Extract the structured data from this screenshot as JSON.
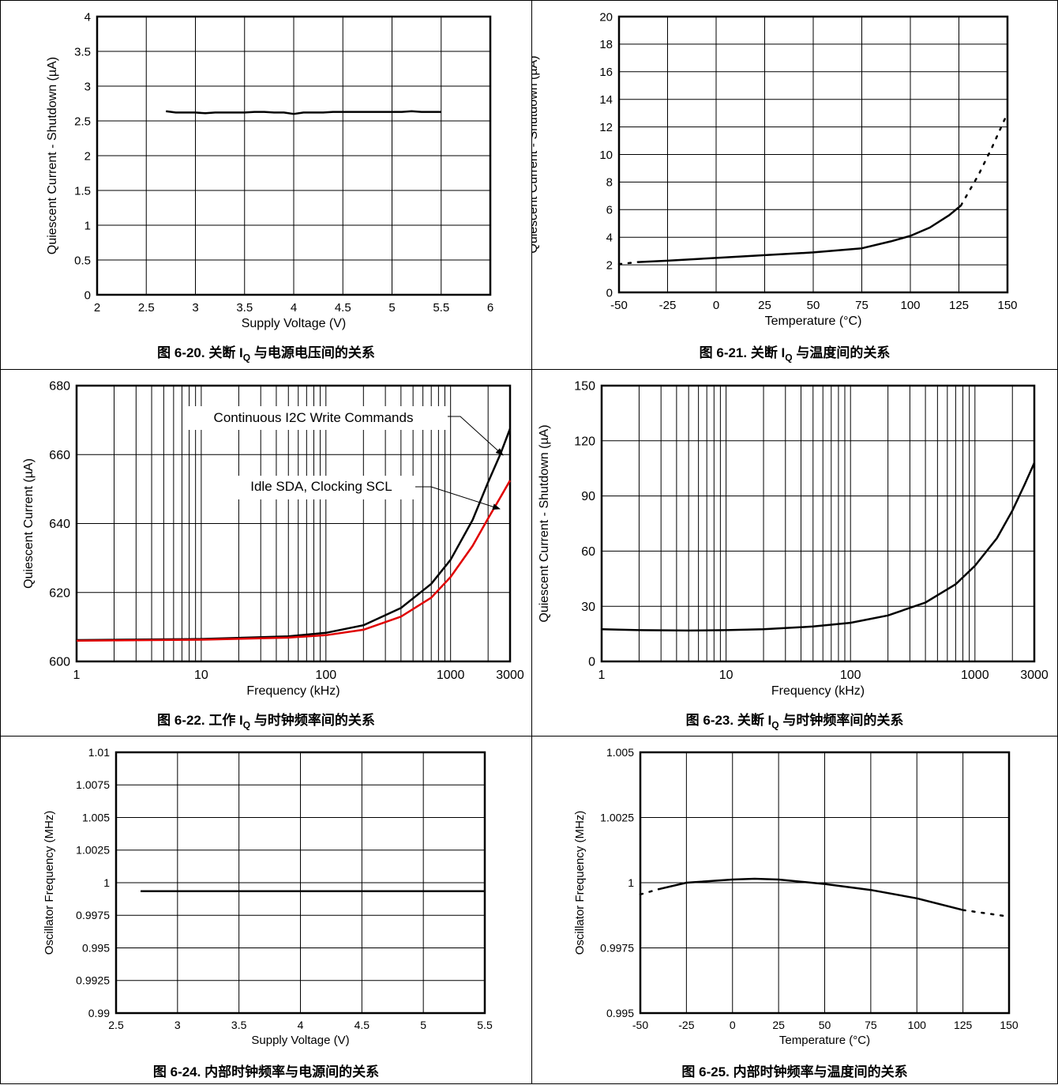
{
  "charts": [
    {
      "caption_prefix": "图 6-20. 关断 I",
      "caption_sub": "Q",
      "caption_suffix": " 与电源电压间的关系",
      "chart_data": {
        "type": "line",
        "xlabel": "Supply Voltage (V)",
        "ylabel": "Quiescent Current - Shutdown (µA)",
        "xlim": [
          2,
          6
        ],
        "ylim": [
          0,
          4
        ],
        "xticks": [
          "2",
          "2.5",
          "3",
          "3.5",
          "4",
          "4.5",
          "5",
          "5.5",
          "6"
        ],
        "yticks": [
          "0",
          "0.5",
          "1",
          "1.5",
          "2",
          "2.5",
          "3",
          "3.5",
          "4"
        ],
        "grid": true,
        "series": [
          {
            "color": "#000000",
            "x": [
              2.7,
              2.8,
              2.9,
              3.0,
              3.1,
              3.2,
              3.3,
              3.4,
              3.5,
              3.6,
              3.7,
              3.8,
              3.9,
              4.0,
              4.1,
              4.2,
              4.3,
              4.4,
              4.5,
              4.6,
              4.7,
              4.8,
              4.9,
              5.0,
              5.1,
              5.2,
              5.3,
              5.4,
              5.5
            ],
            "y": [
              2.64,
              2.62,
              2.62,
              2.62,
              2.61,
              2.62,
              2.62,
              2.62,
              2.62,
              2.63,
              2.63,
              2.62,
              2.62,
              2.6,
              2.62,
              2.62,
              2.62,
              2.63,
              2.63,
              2.63,
              2.63,
              2.63,
              2.63,
              2.63,
              2.63,
              2.64,
              2.63,
              2.63,
              2.63
            ]
          }
        ]
      }
    },
    {
      "caption_prefix": "图 6-21. 关断 I",
      "caption_sub": "Q",
      "caption_suffix": " 与温度间的关系",
      "chart_data": {
        "type": "line",
        "xlabel": "Temperature (°C)",
        "ylabel": "Quiescent Current - Shutdown (µA)",
        "xlim": [
          -50,
          150
        ],
        "ylim": [
          0,
          20
        ],
        "xticks": [
          "-50",
          "-25",
          "0",
          "25",
          "50",
          "75",
          "100",
          "125",
          "150"
        ],
        "yticks": [
          "0",
          "2",
          "4",
          "6",
          "8",
          "10",
          "12",
          "14",
          "16",
          "18",
          "20"
        ],
        "grid": true,
        "series": [
          {
            "color": "#000000",
            "x": [
              -40,
              -25,
              0,
              25,
              50,
              75,
              90,
              100,
              110,
              120,
              126
            ],
            "y": [
              2.2,
              2.3,
              2.5,
              2.7,
              2.9,
              3.2,
              3.7,
              4.1,
              4.7,
              5.6,
              6.3
            ]
          },
          {
            "color": "#000000",
            "dashed": true,
            "x": [
              -50,
              -40
            ],
            "y": [
              2.05,
              2.2
            ]
          },
          {
            "color": "#000000",
            "dashed": true,
            "x": [
              126,
              135,
              142,
              150
            ],
            "y": [
              6.3,
              8.5,
              10.5,
              13.0
            ]
          }
        ]
      }
    },
    {
      "caption_prefix": "图 6-22. 工作 I",
      "caption_sub": "Q",
      "caption_suffix": " 与时钟频率间的关系",
      "chart_data": {
        "type": "line",
        "xscale": "log",
        "xlabel": "Frequency (kHz)",
        "ylabel": "Quiescent Current (µA)",
        "xlim": [
          1,
          3000
        ],
        "ylim": [
          600,
          680
        ],
        "xticks": [
          "1",
          "10",
          "100",
          "1000",
          "3000"
        ],
        "yticks": [
          "600",
          "620",
          "640",
          "660",
          "680"
        ],
        "grid": true,
        "annotations": [
          "Continuous I2C Write Commands",
          "Idle SDA, Clocking SCL"
        ],
        "series": [
          {
            "name": "Continuous I2C Write Commands",
            "color": "#000000",
            "x": [
              1,
              10,
              50,
              100,
              200,
              400,
              700,
              1000,
              1500,
              2000,
              2500,
              3000
            ],
            "y": [
              606.2,
              606.5,
              607.3,
              608.3,
              610.5,
              615.5,
              622.5,
              629.5,
              641,
              652,
              660,
              667.5
            ]
          },
          {
            "name": "Idle SDA, Clocking SCL",
            "color": "#e00000",
            "x": [
              1,
              10,
              50,
              100,
              200,
              400,
              700,
              1000,
              1500,
              2000,
              2500,
              3000
            ],
            "y": [
              606.0,
              606.3,
              606.9,
              607.6,
              609.2,
              613.0,
              618.5,
              624.5,
              633.5,
              641.5,
              647.5,
              652.5
            ]
          }
        ]
      }
    },
    {
      "caption_prefix": "图 6-23. 关断 I",
      "caption_sub": "Q",
      "caption_suffix": " 与时钟频率间的关系",
      "chart_data": {
        "type": "line",
        "xscale": "log",
        "xlabel": "Frequency (kHz)",
        "ylabel": "Quiescent Current - Shutdown (µA)",
        "xlim": [
          1,
          3000
        ],
        "ylim": [
          0,
          150
        ],
        "xticks": [
          "1",
          "10",
          "100",
          "1000",
          "3000"
        ],
        "yticks": [
          "0",
          "30",
          "60",
          "90",
          "120",
          "150"
        ],
        "grid": true,
        "series": [
          {
            "color": "#000000",
            "x": [
              1,
              2,
              5,
              10,
              20,
              50,
              100,
              200,
              400,
              700,
              1000,
              1500,
              2000,
              2500,
              3000
            ],
            "y": [
              17.5,
              17.0,
              16.8,
              17.0,
              17.5,
              19,
              21,
              25,
              32,
              42,
              52,
              67,
              82,
              96,
              108
            ]
          }
        ]
      }
    },
    {
      "caption_prefix": "图 6-24. 内部时钟频率与电源间的关系",
      "caption_sub": "",
      "caption_suffix": "",
      "chart_data": {
        "type": "line",
        "xlabel": "Supply Voltage (V)",
        "ylabel": "Oscillator Frequency (MHz)",
        "xlim": [
          2.5,
          5.5
        ],
        "ylim": [
          0.99,
          1.01
        ],
        "xticks": [
          "2.5",
          "3",
          "3.5",
          "4",
          "4.5",
          "5",
          "5.5"
        ],
        "yticks": [
          "0.99",
          "0.9925",
          "0.995",
          "0.9975",
          "1",
          "1.0025",
          "1.005",
          "1.0075",
          "1.01"
        ],
        "grid": true,
        "series": [
          {
            "color": "#000000",
            "x": [
              2.7,
              5.5
            ],
            "y": [
              0.99935,
              0.99935
            ]
          }
        ]
      }
    },
    {
      "caption_prefix": "图 6-25. 内部时钟频率与温度间的关系",
      "caption_sub": "",
      "caption_suffix": "",
      "chart_data": {
        "type": "line",
        "xlabel": "Temperature (°C)",
        "ylabel": "Oscillator Frequency (MHz)",
        "xlim": [
          -50,
          150
        ],
        "ylim": [
          0.995,
          1.005
        ],
        "xticks": [
          "-50",
          "-25",
          "0",
          "25",
          "50",
          "75",
          "100",
          "125",
          "150"
        ],
        "yticks": [
          "0.995",
          "0.9975",
          "1",
          "1.0025",
          "1.005"
        ],
        "grid": true,
        "series": [
          {
            "color": "#000000",
            "x": [
              -40,
              -25,
              0,
              12,
              25,
              50,
              75,
              100,
              125
            ],
            "y": [
              0.99975,
              1.0,
              1.00012,
              1.00015,
              1.00012,
              0.99995,
              0.99972,
              0.9994,
              0.99895
            ]
          },
          {
            "color": "#000000",
            "dashed": true,
            "x": [
              -50,
              -40
            ],
            "y": [
              0.99955,
              0.99975
            ]
          },
          {
            "color": "#000000",
            "dashed": true,
            "x": [
              125,
              150
            ],
            "y": [
              0.99895,
              0.9987
            ]
          }
        ]
      }
    }
  ]
}
